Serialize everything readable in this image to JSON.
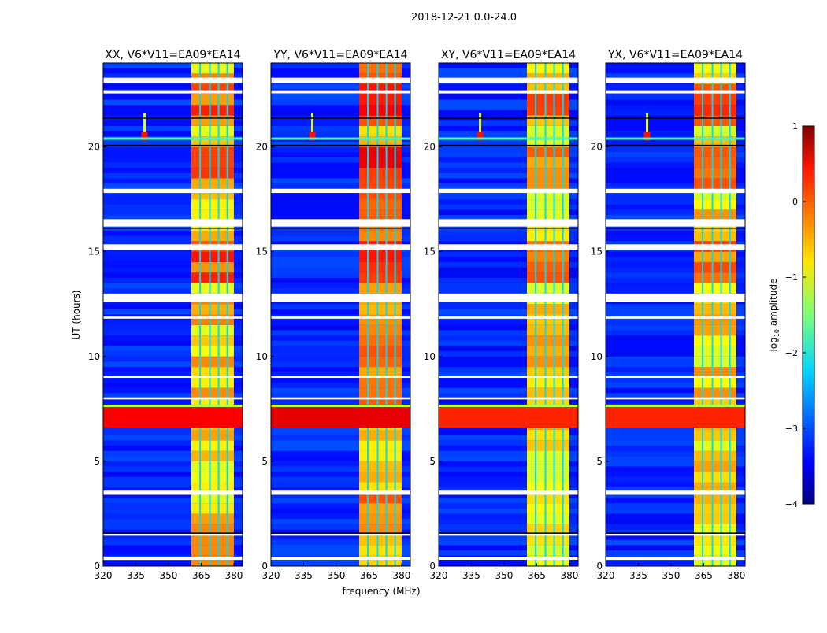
{
  "chart_data": {
    "type": "heatmap",
    "suptitle": "2018-12-21 0.0-24.0",
    "xlabel": "frequency (MHz)",
    "ylabel": "UT (hours)",
    "xlim": [
      320,
      384
    ],
    "ylim": [
      0,
      24
    ],
    "xticks": [
      "320",
      "335",
      "350",
      "365",
      "380"
    ],
    "xtick_values": [
      320,
      335,
      350,
      365,
      380
    ],
    "yticks": [
      "0",
      "5",
      "10",
      "15",
      "20"
    ],
    "ytick_values": [
      0,
      5,
      10,
      15,
      20
    ],
    "panels": [
      {
        "title": "XX, V6*V11=EA09*EA14",
        "band_level": -0.6,
        "storm_level": 0.4,
        "spike_freq": 339
      },
      {
        "title": "YY, V6*V11=EA09*EA14",
        "band_level": -0.4,
        "storm_level": 0.5,
        "spike_freq": 339
      },
      {
        "title": "XY, V6*V11=EA09*EA14",
        "band_level": -0.7,
        "storm_level": 0.2,
        "spike_freq": 339
      },
      {
        "title": "YX, V6*V11=EA09*EA14",
        "band_level": -0.7,
        "storm_level": 0.2,
        "spike_freq": 339
      }
    ],
    "background_level": -3.2,
    "rfi_band_mhz": [
      360.5,
      380
    ],
    "rfi_subband_edges_mhz": [
      364.5,
      369,
      373,
      377
    ],
    "storm_hours": [
      6.6,
      7.7
    ],
    "flagged_hours": [
      [
        0.3,
        0.45
      ],
      [
        1.45,
        1.55
      ],
      [
        3.4,
        3.6
      ],
      [
        7.95,
        8.05
      ],
      [
        9.0,
        9.05
      ],
      [
        11.8,
        11.9
      ],
      [
        12.6,
        13.0
      ],
      [
        15.1,
        15.35
      ],
      [
        16.2,
        16.55
      ],
      [
        17.8,
        18.0
      ],
      [
        22.55,
        22.7
      ],
      [
        23.05,
        23.3
      ]
    ],
    "colorbar": {
      "label": "log10 amplitude",
      "label_main": "log",
      "label_sub": "10",
      "label_rest": " amplitude",
      "range": [
        -4,
        1
      ],
      "ticks": [
        "−4",
        "−3",
        "−2",
        "−1",
        "0",
        "1"
      ],
      "tick_values": [
        -4,
        -3,
        -2,
        -1,
        0,
        1
      ],
      "colormap": "jet"
    }
  }
}
